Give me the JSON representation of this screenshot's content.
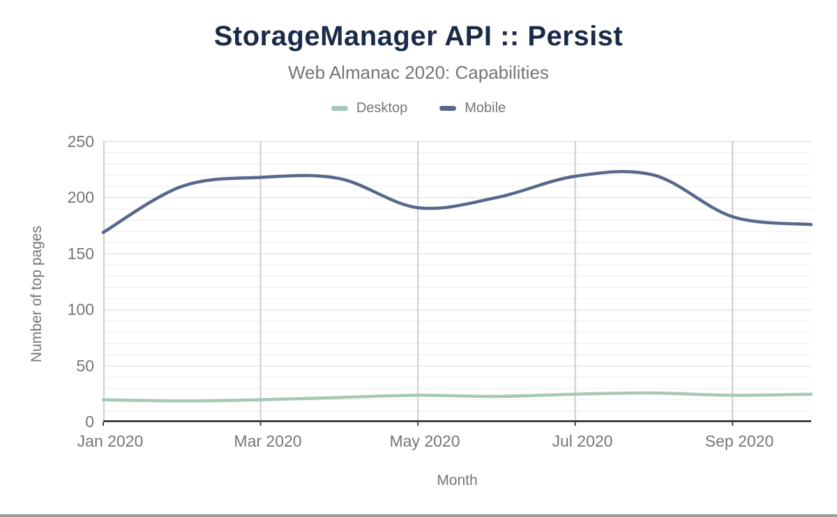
{
  "header": {
    "title": "StorageManager API :: Persist",
    "subtitle": "Web Almanac 2020: Capabilities"
  },
  "legend": [
    {
      "label": "Desktop",
      "color": "#a6c9b5"
    },
    {
      "label": "Mobile",
      "color": "#56688b"
    }
  ],
  "axes": {
    "y_title": "Number of top pages",
    "x_title": "Month",
    "y_ticks": [
      "0",
      "50",
      "100",
      "150",
      "200",
      "250"
    ],
    "x_ticks": [
      "Jan 2020",
      "Mar 2020",
      "May 2020",
      "Jul 2020",
      "Sep 2020"
    ]
  },
  "chart_data": {
    "type": "line",
    "title": "StorageManager API :: Persist",
    "subtitle": "Web Almanac 2020: Capabilities",
    "xlabel": "Month",
    "ylabel": "Number of top pages",
    "categories": [
      "Jan 2020",
      "Feb 2020",
      "Mar 2020",
      "Apr 2020",
      "May 2020",
      "Jun 2020",
      "Jul 2020",
      "Aug 2020",
      "Sep 2020",
      "Oct 2020"
    ],
    "x_tick_labels_shown": [
      "Jan 2020",
      "Mar 2020",
      "May 2020",
      "Jul 2020",
      "Sep 2020"
    ],
    "ylim": [
      0,
      250
    ],
    "y_tick_values": [
      0,
      50,
      100,
      150,
      200,
      250
    ],
    "grid": {
      "minor_step": 10,
      "major_step": 50,
      "vertical_at_category_indexes": [
        2,
        4,
        6,
        8
      ]
    },
    "legend_position": "top",
    "line_style": "smooth",
    "series": [
      {
        "name": "Desktop",
        "color": "#a6c9b5",
        "values": [
          20,
          19,
          20,
          22,
          24,
          23,
          25,
          26,
          24,
          25
        ]
      },
      {
        "name": "Mobile",
        "color": "#56688b",
        "values": [
          169,
          210,
          218,
          217,
          191,
          200,
          219,
          220,
          183,
          176
        ]
      }
    ]
  },
  "colors": {
    "title": "#1a2b49",
    "muted_text": "#757575",
    "minor_gridline": "#f2f2f2",
    "major_gridline": "#e4e4e4",
    "vertical_gridline": "#cccccc",
    "axis_line": "#424242",
    "bottom_border": "#9e9e9e"
  }
}
